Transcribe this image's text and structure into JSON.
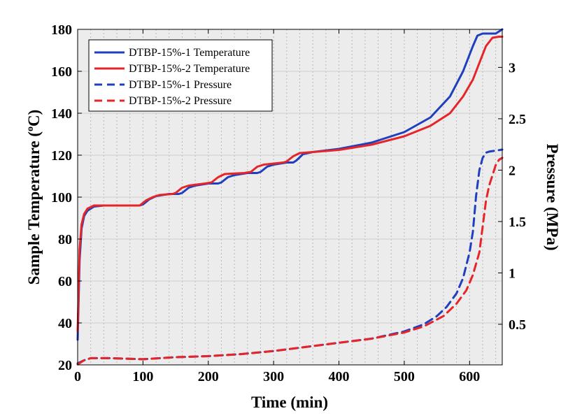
{
  "chart_data": {
    "type": "line",
    "title": "",
    "xlabel": "Time (min)",
    "ylabel_left": "Sample Temperature (oC)",
    "ylabel_left_main": "Sample Temperature (",
    "ylabel_left_sup": "o",
    "ylabel_left_tail": "C)",
    "ylabel_right": "Pressure (MPa)",
    "xlim": [
      0,
      650
    ],
    "ylim_left": [
      20,
      180
    ],
    "ylim_right": [
      0.105,
      3.37
    ],
    "xticks": [
      0,
      100,
      200,
      300,
      400,
      500,
      600
    ],
    "xtick_labels": [
      "0",
      "100",
      "200",
      "300",
      "400",
      "500",
      "600"
    ],
    "yticks_left": [
      20,
      40,
      60,
      80,
      100,
      120,
      140,
      160,
      180
    ],
    "ytick_left_labels": [
      "20",
      "40",
      "60",
      "80",
      "100",
      "120",
      "140",
      "160",
      "180"
    ],
    "yticks_right": [
      0.5,
      1,
      1.5,
      2,
      2.5,
      3
    ],
    "ytick_right_labels": [
      "0.5",
      "1",
      "1.5",
      "2",
      "2.5",
      "3"
    ],
    "grid": true,
    "legend_position": "top-left",
    "series": [
      {
        "name": "DTBP-15%-1 Temperature",
        "axis": "left",
        "color": "#1f3fbf",
        "dash": "solid",
        "x": [
          0,
          3,
          6,
          10,
          15,
          25,
          40,
          60,
          80,
          95,
          100,
          110,
          120,
          140,
          155,
          160,
          170,
          180,
          200,
          215,
          220,
          230,
          240,
          260,
          275,
          280,
          290,
          300,
          320,
          330,
          335,
          345,
          360,
          400,
          450,
          500,
          540,
          570,
          590,
          605,
          612,
          620,
          630,
          640,
          650
        ],
        "y": [
          32,
          70,
          85,
          91,
          93.5,
          95.5,
          96,
          96,
          96,
          96,
          96.5,
          99,
          100.5,
          101.5,
          101.5,
          102,
          104.5,
          105.5,
          106.5,
          106.5,
          107,
          109.5,
          110.5,
          111.5,
          111.5,
          112,
          114.5,
          115.5,
          116.5,
          116.5,
          117.5,
          120.5,
          121.5,
          123,
          126,
          131,
          138,
          148,
          160,
          172,
          177,
          178,
          178,
          178,
          180
        ]
      },
      {
        "name": "DTBP-15%-2 Temperature",
        "axis": "left",
        "color": "#e5252a",
        "dash": "solid",
        "x": [
          0,
          3,
          6,
          10,
          15,
          25,
          40,
          60,
          80,
          95,
          105,
          115,
          125,
          145,
          150,
          160,
          170,
          195,
          205,
          215,
          225,
          255,
          265,
          275,
          285,
          315,
          320,
          330,
          340,
          360,
          400,
          450,
          500,
          540,
          570,
          590,
          605,
          615,
          625,
          635,
          645,
          650
        ],
        "y": [
          36,
          75,
          87,
          92,
          94.5,
          96,
          96,
          96,
          96,
          96,
          98.5,
          100,
          101,
          101.5,
          102,
          104.5,
          105.5,
          106.5,
          107,
          109.5,
          111,
          111.5,
          112,
          114.5,
          115.5,
          116.5,
          117,
          119.5,
          121,
          121.5,
          122.5,
          125,
          129,
          134,
          140,
          148,
          156,
          164,
          172,
          176,
          176.5,
          176.5
        ]
      },
      {
        "name": "DTBP-15%-1 Pressure",
        "axis": "right",
        "color": "#1f3fbf",
        "dash": "dashed",
        "x": [
          0,
          10,
          20,
          50,
          100,
          150,
          200,
          250,
          300,
          350,
          400,
          450,
          500,
          530,
          550,
          565,
          580,
          590,
          600,
          605,
          610,
          615,
          620,
          625,
          630,
          640,
          650
        ],
        "y": [
          0.12,
          0.15,
          0.17,
          0.17,
          0.16,
          0.18,
          0.19,
          0.21,
          0.24,
          0.28,
          0.32,
          0.36,
          0.43,
          0.5,
          0.58,
          0.67,
          0.8,
          0.95,
          1.2,
          1.4,
          1.75,
          2.0,
          2.12,
          2.17,
          2.18,
          2.19,
          2.2
        ]
      },
      {
        "name": "DTBP-15%-2 Pressure",
        "axis": "right",
        "color": "#e5252a",
        "dash": "dashed",
        "x": [
          0,
          10,
          20,
          50,
          100,
          150,
          200,
          250,
          300,
          350,
          400,
          450,
          500,
          530,
          560,
          580,
          595,
          605,
          615,
          620,
          625,
          630,
          635,
          640,
          645,
          650
        ],
        "y": [
          0.11,
          0.15,
          0.17,
          0.17,
          0.16,
          0.18,
          0.19,
          0.21,
          0.24,
          0.28,
          0.32,
          0.36,
          0.42,
          0.48,
          0.58,
          0.7,
          0.83,
          0.98,
          1.2,
          1.45,
          1.7,
          1.85,
          1.95,
          2.05,
          2.1,
          2.12
        ]
      }
    ]
  }
}
